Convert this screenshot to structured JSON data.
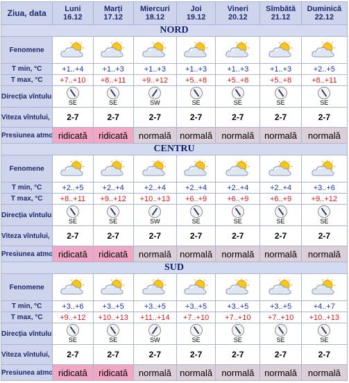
{
  "header": {
    "first": "Ziua, data",
    "days": [
      {
        "name": "Luni",
        "date": "16.12"
      },
      {
        "name": "Marți",
        "date": "17.12"
      },
      {
        "name": "Miercuri",
        "date": "18.12"
      },
      {
        "name": "Joi",
        "date": "19.12"
      },
      {
        "name": "Vineri",
        "date": "20.12"
      },
      {
        "name": "Sîmbătă",
        "date": "21.12"
      },
      {
        "name": "Duminică",
        "date": "22.12"
      }
    ]
  },
  "labels": {
    "phenomena": "Fenomene",
    "tmin": "T min, °C",
    "tmax": "T max, °C",
    "wind_dir": "Direcția vîntului",
    "wind_speed": "Viteza vîntului, m/s",
    "pressure": "Presiunea atmosferică"
  },
  "regions": [
    {
      "name": "NORD",
      "icons": [
        "partly-cloudy-icon",
        "partly-cloudy-icon",
        "partly-cloudy-icon",
        "partly-cloudy-icon",
        "partly-cloudy-icon",
        "partly-cloudy-icon",
        "partly-cloudy-icon"
      ],
      "tmin": [
        "+1..+4",
        "+1..+3",
        "+1..+3",
        "+1..+3",
        "+1..+3",
        "+1..+3",
        "+2..+5"
      ],
      "tmax": [
        "+7..+10",
        "+8..+11",
        "+9..+12",
        "+5..+8",
        "+5..+8",
        "+5..+8",
        "+8..+11"
      ],
      "wind_dir": [
        "SE",
        "SE",
        "SW",
        "SE",
        "SE",
        "SE",
        "SE"
      ],
      "wind_speed": [
        "2-7",
        "2-7",
        "2-7",
        "2-7",
        "2-7",
        "2-7",
        "2-7"
      ],
      "pressure": [
        "ridicată",
        "ridicată",
        "normală",
        "normală",
        "normală",
        "normală",
        "normală"
      ]
    },
    {
      "name": "CENTRU",
      "icons": [
        "partly-cloudy-icon",
        "partly-cloudy-icon",
        "partly-cloudy-icon",
        "partly-cloudy-icon",
        "partly-cloudy-icon",
        "partly-cloudy-icon",
        "partly-cloudy-icon"
      ],
      "tmin": [
        "+2..+5",
        "+2..+4",
        "+2..+4",
        "+2..+4",
        "+2..+4",
        "+2..+4",
        "+3..+6"
      ],
      "tmax": [
        "+8..+11",
        "+9..+12",
        "+10..+13",
        "+6..+9",
        "+6..+9",
        "+6..+9",
        "+9..+12"
      ],
      "wind_dir": [
        "SE",
        "SE",
        "SW",
        "SE",
        "SE",
        "SE",
        "SE"
      ],
      "wind_speed": [
        "2-7",
        "2-7",
        "2-7",
        "2-7",
        "2-7",
        "2-7",
        "2-7"
      ],
      "pressure": [
        "ridicată",
        "ridicată",
        "normală",
        "normală",
        "normală",
        "normală",
        "normală"
      ]
    },
    {
      "name": "SUD",
      "icons": [
        "partly-cloudy-icon",
        "partly-cloudy-icon",
        "partly-cloudy-icon",
        "partly-cloudy-icon",
        "partly-cloudy-icon",
        "partly-cloudy-icon",
        "partly-cloudy-icon"
      ],
      "tmin": [
        "+3..+6",
        "+3..+5",
        "+3..+5",
        "+3..+5",
        "+3..+5",
        "+3..+5",
        "+4..+7"
      ],
      "tmax": [
        "+9..+12",
        "+10..+13",
        "+11..+14",
        "+7..+10",
        "+7..+10",
        "+7..+10",
        "+10..+13"
      ],
      "wind_dir": [
        "SE",
        "SE",
        "SW",
        "SE",
        "SE",
        "SE",
        "SE"
      ],
      "wind_speed": [
        "2-7",
        "2-7",
        "2-7",
        "2-7",
        "2-7",
        "2-7",
        "2-7"
      ],
      "pressure": [
        "ridicată",
        "ridicată",
        "normală",
        "normală",
        "normală",
        "normală",
        "normală"
      ]
    }
  ],
  "colors": {
    "header_bg": "#cdd4ec",
    "tmin_text": "#1b2fb8",
    "tmax_text": "#e01818",
    "pressure_high_bg": "#f0a8c4",
    "pressure_normal_bg": "#dccfd8"
  }
}
